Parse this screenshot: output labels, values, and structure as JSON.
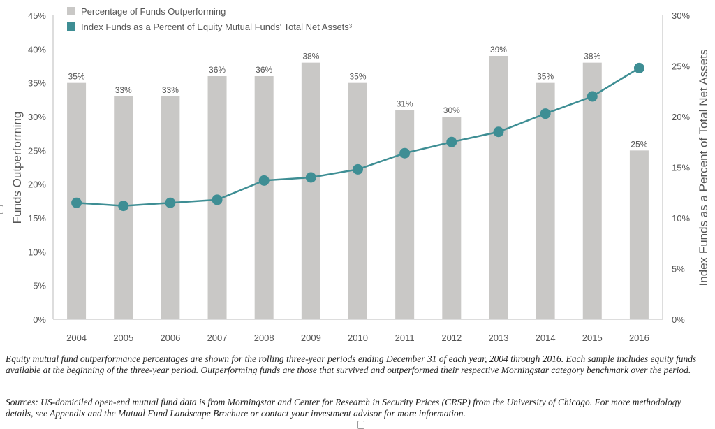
{
  "chart_data": {
    "type": "bar+line",
    "categories": [
      "2004",
      "2005",
      "2006",
      "2007",
      "2008",
      "2009",
      "2010",
      "2011",
      "2012",
      "2013",
      "2014",
      "2015",
      "2016"
    ],
    "series": [
      {
        "name": "Percentage of Funds Outperforming",
        "type": "bar",
        "axis": "left",
        "values": [
          35,
          33,
          33,
          36,
          36,
          38,
          35,
          31,
          30,
          39,
          35,
          38,
          25
        ],
        "labels": [
          "35%",
          "33%",
          "33%",
          "36%",
          "36%",
          "38%",
          "35%",
          "31%",
          "30%",
          "39%",
          "35%",
          "38%",
          "25%"
        ],
        "color": "#c9c8c6"
      },
      {
        "name": "Index Funds as a Percent of Equity Mutual Funds' Total Net Assets³",
        "type": "line",
        "axis": "right",
        "values": [
          11.5,
          11.2,
          11.5,
          11.8,
          13.7,
          14.0,
          14.8,
          16.4,
          17.5,
          18.5,
          20.3,
          22.0,
          24.8
        ],
        "color": "#3e8e94"
      }
    ],
    "ylabel": "Funds Outperforming",
    "y2label": "Index Funds as a Percent of Total Net Assets",
    "ylim": [
      0,
      45
    ],
    "y2lim": [
      0,
      30
    ],
    "yticks": [
      "0%",
      "5%",
      "10%",
      "15%",
      "20%",
      "25%",
      "30%",
      "35%",
      "40%",
      "45%"
    ],
    "y2ticks": [
      "0%",
      "5%",
      "10%",
      "15%",
      "20%",
      "25%",
      "30%"
    ],
    "grid": false,
    "legend_position": "top-left"
  },
  "footnotes": {
    "note_1": "Equity mutual fund outperformance percentages are shown for the rolling three-year periods ending December 31 of each year, 2004 through 2016. Each sample includes equity funds available at the beginning of the three-year period. Outperforming funds are those that survived and outperformed their respective Morningstar category benchmark over the period.",
    "note_2": "Sources: US-domiciled open-end mutual fund data is from Morningstar and Center for Research in Security Prices (CRSP) from the University of Chicago. For more methodology details, see Appendix and the Mutual Fund Landscape Brochure or contact your investment advisor for more information."
  }
}
